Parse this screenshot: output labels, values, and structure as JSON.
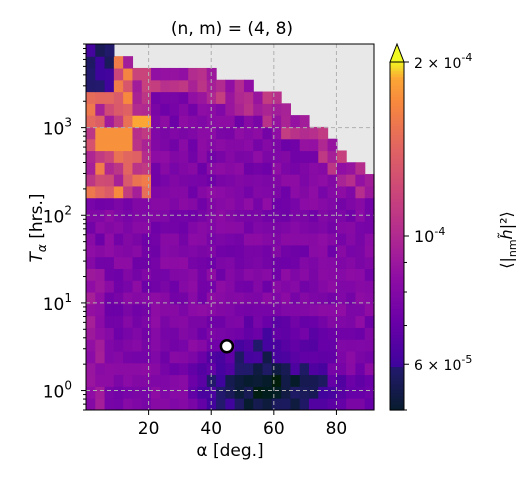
{
  "chart_data": {
    "type": "heatmap",
    "title": "(n, m) = (4, 8)",
    "xlabel": "α [deg.]",
    "ylabel": "T_α [hrs.]",
    "xlim": [
      0,
      92
    ],
    "ylim": [
      0.6,
      9000
    ],
    "y_scale": "log",
    "x_ticks": [
      20,
      40,
      60,
      80
    ],
    "x_tick_labels": [
      "20",
      "40",
      "60",
      "80"
    ],
    "y_ticks": [
      1,
      10,
      100,
      1000
    ],
    "y_tick_labels": [
      "10^0",
      "10^1",
      "10^2",
      "10^3"
    ],
    "grid": true,
    "grid_style": "dashed",
    "missing_color": "#e8e8e8",
    "colormap": "plasma",
    "colorbar": {
      "label": "⟨|ₙₘh̃|²⟩",
      "scale": "log",
      "range": [
        5e-05,
        0.0002
      ],
      "ticks": [
        6e-05,
        0.0001,
        0.0002
      ],
      "tick_labels": [
        "6 × 10^-5",
        "10^-4",
        "2 × 10^-4"
      ],
      "extend": "max"
    },
    "marker": {
      "x": 45,
      "y": 3.2,
      "style": "white circle with black edge"
    },
    "grid_dims": {
      "nx": 31,
      "ny": 31,
      "x_min": 0,
      "x_max": 92,
      "log_y_min": -0.22,
      "log_y_max": 3.95
    },
    "missing_boundary_note": "cells above upper contour are empty (grey)",
    "upper_contour": [
      [
        0,
        3.95
      ],
      [
        5,
        3.95
      ],
      [
        10,
        3.85
      ],
      [
        15,
        3.75
      ],
      [
        20,
        3.72
      ],
      [
        25,
        3.72
      ],
      [
        30,
        3.7
      ],
      [
        35,
        3.68
      ],
      [
        40,
        3.62
      ],
      [
        45,
        3.55
      ],
      [
        50,
        3.5
      ],
      [
        55,
        3.45
      ],
      [
        60,
        3.4
      ],
      [
        65,
        3.25
      ],
      [
        70,
        3.1
      ],
      [
        75,
        3.0
      ],
      [
        80,
        2.8
      ],
      [
        85,
        2.65
      ],
      [
        90,
        2.5
      ],
      [
        92,
        2.45
      ]
    ]
  }
}
